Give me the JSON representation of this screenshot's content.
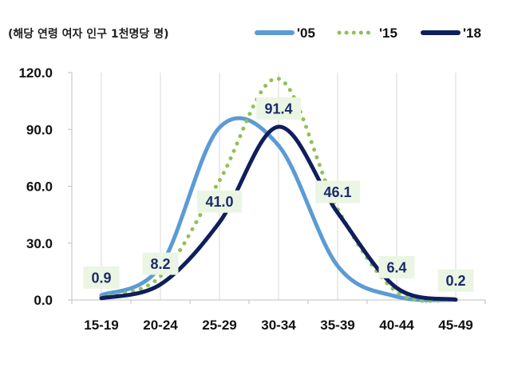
{
  "chart_data": {
    "type": "line",
    "unit_label": "(해당 연령 여자 인구 1천명당 명)",
    "categories": [
      "15-19",
      "20-24",
      "25-29",
      "30-34",
      "35-39",
      "40-44",
      "45-49"
    ],
    "ylim": [
      0,
      120
    ],
    "yticks": [
      "0.0",
      "30.0",
      "60.0",
      "90.0",
      "120.0"
    ],
    "grid": "vertical",
    "legend_position": "top",
    "series": [
      {
        "name": "'05",
        "color": "#5b9bd5",
        "style": "solid",
        "values": [
          2.5,
          17.8,
          91.0,
          81.5,
          18.0,
          1.8,
          0.1
        ]
      },
      {
        "name": "'15",
        "color": "#92c05a",
        "style": "dotted",
        "values": [
          1.4,
          12.5,
          63.0,
          116.8,
          48.0,
          4.3,
          0.1
        ]
      },
      {
        "name": "'18",
        "color": "#0f1f5c",
        "style": "solid",
        "values": [
          0.9,
          8.2,
          41.0,
          91.4,
          46.1,
          6.4,
          0.2
        ]
      }
    ],
    "data_labels": [
      "0.9",
      "8.2",
      "41.0",
      "91.4",
      "46.1",
      "6.4",
      "0.2"
    ]
  }
}
